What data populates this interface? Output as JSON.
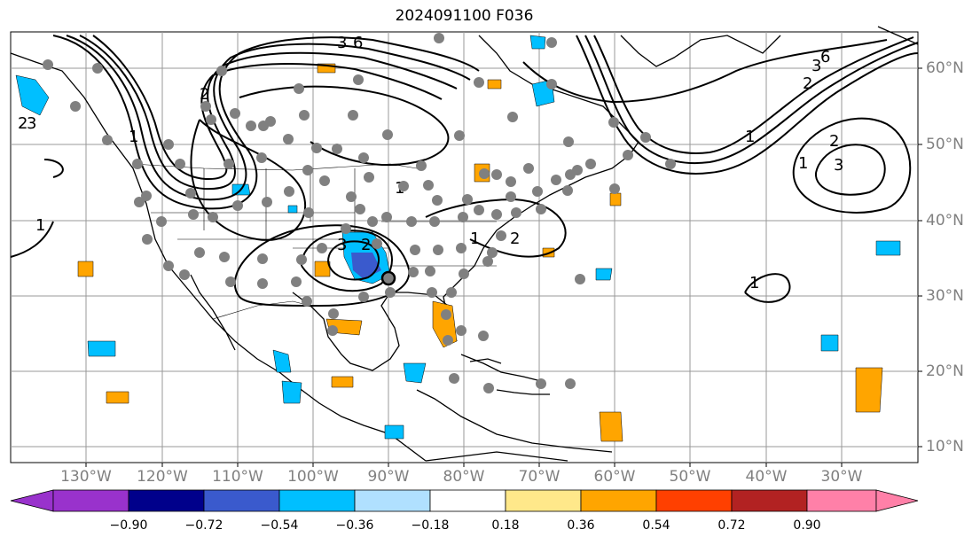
{
  "title": "2024091100 F036",
  "lat_labels": [
    "60°N",
    "50°N",
    "40°N",
    "30°N",
    "20°N",
    "10°N"
  ],
  "lon_labels": [
    "130°W",
    "120°W",
    "110°W",
    "100°W",
    "90°W",
    "80°W",
    "70°W",
    "60°W",
    "50°W",
    "40°W",
    "30°W"
  ],
  "colorbar": {
    "labels": [
      "−0.90",
      "−0.72",
      "−0.54",
      "−0.36",
      "−0.18",
      "0.18",
      "0.36",
      "0.54",
      "0.72",
      "0.90"
    ],
    "colors": [
      "#9932cc",
      "#00008b",
      "#3a5acd",
      "#00bfff",
      "#b0e0ff",
      "#ffffff",
      "#ffe88a",
      "#ffa500",
      "#ff4000",
      "#b22222",
      "#ff80a8"
    ]
  },
  "contour_labels": [
    "3",
    "6",
    "2",
    "1",
    "1",
    "2",
    "3",
    "1",
    "2",
    "3",
    "2",
    "1",
    "1",
    "2",
    "3",
    "6",
    "1",
    "2",
    "3",
    "1"
  ],
  "storm_marker": {
    "lat": 31.5,
    "lon": "-89.5"
  }
}
